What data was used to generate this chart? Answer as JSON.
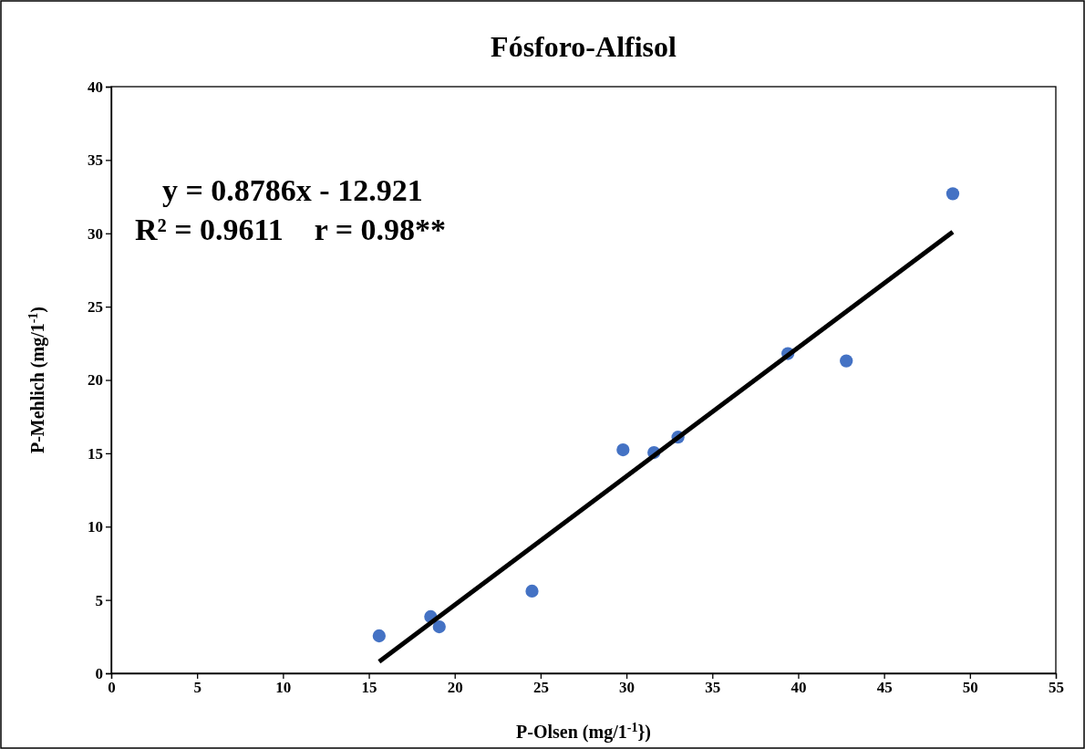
{
  "chart_data": {
    "type": "scatter",
    "title": "Fósforo-Alfisol",
    "xlabel": "P-Olsen (mg/1$^{-1}$})",
    "ylabel": "P-Mehlich (mg/1$^{-1}$)",
    "xlim": [
      0,
      55
    ],
    "xticks": [
      0,
      5,
      10,
      15,
      20,
      25,
      30,
      35,
      40,
      45,
      50,
      55
    ],
    "ylim": [
      0,
      40
    ],
    "yticks": [
      0,
      5,
      10,
      15,
      20,
      25,
      30,
      35,
      40
    ],
    "grid": false,
    "marker": "circle",
    "series": [
      {
        "color": "#4472c4",
        "x": [
          15.6,
          18.6,
          19.1,
          24.5,
          29.8,
          31.6,
          33.0,
          39.4,
          42.8,
          49.0
        ],
        "values": [
          2.55,
          3.86,
          3.17,
          5.6,
          15.24,
          15.05,
          16.1,
          21.8,
          21.3,
          32.7
        ]
      },
      {
        "type": "line",
        "color": "#000000",
        "marker": "none",
        "x": [
          15.6,
          49.0
        ],
        "values": [
          0.8,
          30.1
        ]
      }
    ],
    "annotations": [
      "y = 0.8786x - 12.921",
      "R² = 0.9611    r = 0.98**"
    ]
  }
}
